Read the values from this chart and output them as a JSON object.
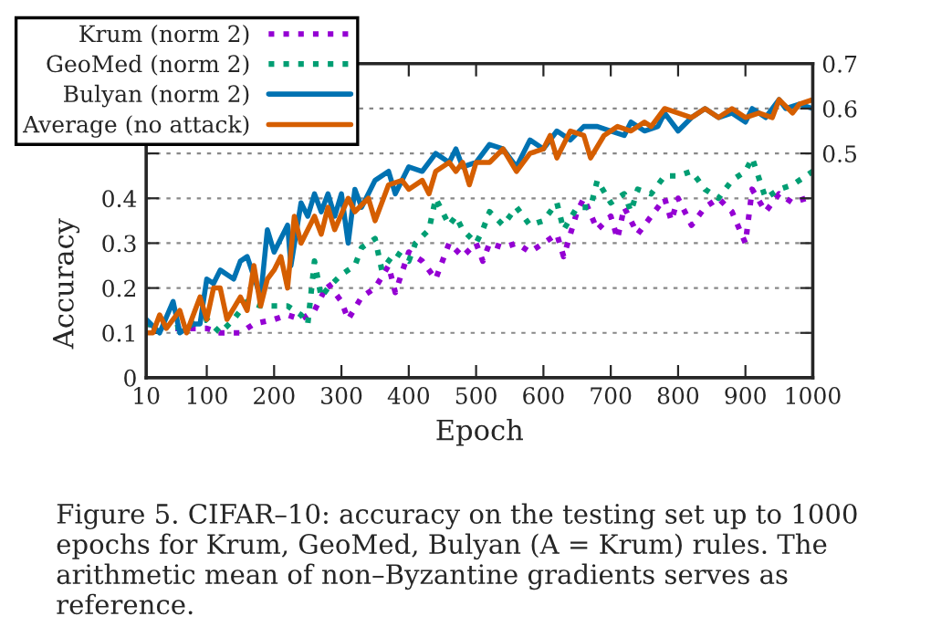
{
  "chart_data": {
    "type": "line",
    "xlabel": "Epoch",
    "ylabel": "Accuracy",
    "xlim": [
      10,
      1000
    ],
    "xticks": [
      10,
      100,
      200,
      300,
      400,
      500,
      600,
      700,
      800,
      900,
      1000
    ],
    "ylim": [
      0,
      0.7
    ],
    "yticks": [
      0,
      0.1,
      0.2,
      0.3,
      0.4,
      {
        "value": 0.5,
        "label": null
      },
      {
        "value": 0.6,
        "label": null
      },
      {
        "value": 0.7,
        "label": null
      }
    ],
    "y2lim": [
      0,
      0.7
    ],
    "y2ticks": [
      {
        "value": 0,
        "label": null
      },
      {
        "value": 0.1,
        "label": null
      },
      {
        "value": 0.2,
        "label": null
      },
      {
        "value": 0.3,
        "label": null
      },
      {
        "value": 0.4,
        "label": null
      },
      0.5,
      0.6,
      0.7
    ],
    "grid": "y",
    "legend": "top left",
    "marker": "none",
    "annotations": [
      "Figure 5. CIFAR–10: accuracy on the testing set up to 1000 epochs for Krum, GeoMed, Bulyan (A = Krum) rules. The arithmetic mean of non–Byzantine gradients serves as reference."
    ],
    "series": [
      {
        "name": "Krum (norm 2)",
        "color": "#9400d3",
        "line_style": "dotted",
        "x": [
          10,
          50,
          80,
          100,
          120,
          150,
          170,
          200,
          220,
          240,
          260,
          280,
          300,
          310,
          330,
          350,
          370,
          380,
          400,
          420,
          440,
          460,
          480,
          500,
          510,
          520,
          540,
          560,
          580,
          600,
          620,
          630,
          650,
          660,
          680,
          700,
          710,
          720,
          740,
          760,
          780,
          790,
          800,
          820,
          840,
          860,
          880,
          900,
          910,
          930,
          950,
          970,
          990,
          1000
        ],
        "values": [
          0.12,
          0.11,
          0.11,
          0.11,
          0.1,
          0.1,
          0.12,
          0.13,
          0.14,
          0.13,
          0.15,
          0.21,
          0.17,
          0.13,
          0.18,
          0.2,
          0.25,
          0.19,
          0.28,
          0.26,
          0.22,
          0.3,
          0.27,
          0.3,
          0.26,
          0.3,
          0.29,
          0.3,
          0.28,
          0.3,
          0.32,
          0.27,
          0.37,
          0.4,
          0.33,
          0.36,
          0.31,
          0.38,
          0.32,
          0.36,
          0.4,
          0.35,
          0.4,
          0.34,
          0.38,
          0.4,
          0.37,
          0.3,
          0.42,
          0.37,
          0.41,
          0.39,
          0.4,
          0.39
        ]
      },
      {
        "name": "GeoMed (norm 2)",
        "color": "#009e73",
        "line_style": "dotted",
        "x": [
          10,
          50,
          80,
          100,
          120,
          140,
          160,
          180,
          200,
          220,
          240,
          250,
          260,
          270,
          280,
          300,
          320,
          330,
          350,
          360,
          380,
          400,
          410,
          430,
          440,
          460,
          470,
          480,
          500,
          510,
          520,
          540,
          560,
          580,
          600,
          620,
          630,
          650,
          670,
          680,
          700,
          720,
          730,
          740,
          760,
          780,
          800,
          820,
          840,
          860,
          880,
          900,
          910,
          930,
          950,
          970,
          990,
          1000
        ],
        "values": [
          0.12,
          0.11,
          0.12,
          0.13,
          0.1,
          0.13,
          0.17,
          0.16,
          0.16,
          0.16,
          0.14,
          0.12,
          0.26,
          0.18,
          0.2,
          0.23,
          0.25,
          0.29,
          0.31,
          0.24,
          0.28,
          0.26,
          0.3,
          0.33,
          0.4,
          0.34,
          0.36,
          0.33,
          0.3,
          0.33,
          0.37,
          0.34,
          0.38,
          0.34,
          0.35,
          0.39,
          0.33,
          0.38,
          0.38,
          0.44,
          0.39,
          0.41,
          0.37,
          0.42,
          0.41,
          0.45,
          0.45,
          0.46,
          0.42,
          0.4,
          0.44,
          0.46,
          0.49,
          0.4,
          0.42,
          0.43,
          0.45,
          0.46
        ]
      },
      {
        "name": "Bulyan (norm 2)",
        "color": "#0072b2",
        "line_style": "solid",
        "x": [
          10,
          30,
          50,
          60,
          80,
          90,
          100,
          110,
          120,
          140,
          150,
          160,
          180,
          190,
          200,
          220,
          225,
          240,
          250,
          260,
          270,
          280,
          290,
          300,
          310,
          320,
          330,
          350,
          370,
          380,
          400,
          420,
          440,
          460,
          470,
          480,
          500,
          520,
          540,
          560,
          580,
          600,
          620,
          640,
          660,
          680,
          700,
          720,
          730,
          750,
          770,
          780,
          800,
          820,
          840,
          860,
          880,
          900,
          910,
          930,
          950,
          960,
          980,
          1000
        ],
        "values": [
          0.13,
          0.1,
          0.17,
          0.1,
          0.12,
          0.12,
          0.22,
          0.21,
          0.24,
          0.22,
          0.26,
          0.27,
          0.18,
          0.33,
          0.28,
          0.34,
          0.25,
          0.39,
          0.36,
          0.41,
          0.37,
          0.41,
          0.36,
          0.41,
          0.3,
          0.42,
          0.38,
          0.44,
          0.46,
          0.41,
          0.47,
          0.46,
          0.5,
          0.48,
          0.51,
          0.47,
          0.48,
          0.52,
          0.51,
          0.47,
          0.53,
          0.51,
          0.55,
          0.53,
          0.56,
          0.56,
          0.55,
          0.54,
          0.57,
          0.55,
          0.56,
          0.59,
          0.55,
          0.58,
          0.6,
          0.58,
          0.59,
          0.57,
          0.6,
          0.58,
          0.62,
          0.6,
          0.61,
          0.6
        ]
      },
      {
        "name": "Average (no attack)",
        "color": "#d55e00",
        "line_style": "solid",
        "x": [
          10,
          20,
          30,
          40,
          60,
          70,
          90,
          100,
          110,
          120,
          130,
          150,
          160,
          170,
          180,
          190,
          200,
          210,
          220,
          230,
          240,
          250,
          260,
          270,
          280,
          290,
          310,
          320,
          340,
          350,
          370,
          390,
          400,
          420,
          430,
          440,
          460,
          470,
          480,
          490,
          500,
          520,
          540,
          560,
          580,
          600,
          610,
          620,
          640,
          660,
          670,
          690,
          710,
          730,
          750,
          760,
          780,
          800,
          820,
          840,
          860,
          880,
          900,
          920,
          940,
          950,
          970,
          980,
          1000
        ],
        "values": [
          0.1,
          0.1,
          0.14,
          0.11,
          0.15,
          0.1,
          0.18,
          0.13,
          0.2,
          0.2,
          0.13,
          0.18,
          0.15,
          0.25,
          0.16,
          0.22,
          0.24,
          0.27,
          0.2,
          0.36,
          0.3,
          0.33,
          0.36,
          0.32,
          0.38,
          0.33,
          0.4,
          0.37,
          0.4,
          0.35,
          0.43,
          0.44,
          0.42,
          0.44,
          0.41,
          0.46,
          0.48,
          0.46,
          0.48,
          0.43,
          0.48,
          0.48,
          0.51,
          0.46,
          0.5,
          0.51,
          0.54,
          0.49,
          0.55,
          0.54,
          0.49,
          0.54,
          0.56,
          0.55,
          0.57,
          0.56,
          0.6,
          0.59,
          0.58,
          0.6,
          0.58,
          0.6,
          0.58,
          0.59,
          0.58,
          0.62,
          0.59,
          0.61,
          0.62
        ]
      }
    ]
  }
}
